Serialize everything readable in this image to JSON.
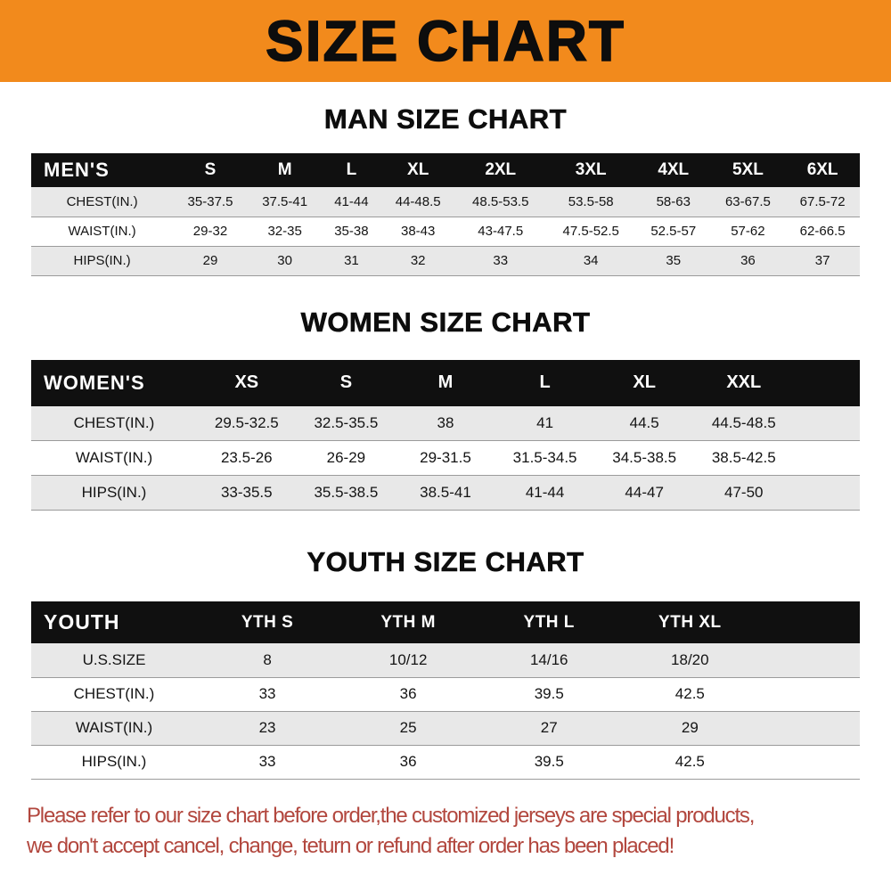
{
  "theme": {
    "banner_bg": "#f28a1c",
    "table_header_bg": "#101010",
    "row_stripe": "#e8e8e8",
    "footer_text": "#b2473e"
  },
  "banner": {
    "title": "SIZE CHART"
  },
  "sections": [
    {
      "heading": "MAN SIZE CHART",
      "table": {
        "label": "MEN'S",
        "columns": [
          "S",
          "M",
          "L",
          "XL",
          "2XL",
          "3XL",
          "4XL",
          "5XL",
          "6XL"
        ],
        "rows": [
          {
            "label": "CHEST(IN.)",
            "values": [
              "35-37.5",
              "37.5-41",
              "41-44",
              "44-48.5",
              "48.5-53.5",
              "53.5-58",
              "58-63",
              "63-67.5",
              "67.5-72"
            ]
          },
          {
            "label": "WAIST(IN.)",
            "values": [
              "29-32",
              "32-35",
              "35-38",
              "38-43",
              "43-47.5",
              "47.5-52.5",
              "52.5-57",
              "57-62",
              "62-66.5"
            ]
          },
          {
            "label": "HIPS(IN.)",
            "values": [
              "29",
              "30",
              "31",
              "32",
              "33",
              "34",
              "35",
              "36",
              "37"
            ]
          }
        ]
      }
    },
    {
      "heading": "WOMEN SIZE CHART",
      "table": {
        "label": "WOMEN'S",
        "filler": true,
        "columns": [
          "XS",
          "S",
          "M",
          "L",
          "XL",
          "XXL"
        ],
        "rows": [
          {
            "label": "CHEST(IN.)",
            "values": [
              "29.5-32.5",
              "32.5-35.5",
              "38",
              "41",
              "44.5",
              "44.5-48.5"
            ]
          },
          {
            "label": "WAIST(IN.)",
            "values": [
              "23.5-26",
              "26-29",
              "29-31.5",
              "31.5-34.5",
              "34.5-38.5",
              "38.5-42.5"
            ]
          },
          {
            "label": "HIPS(IN.)",
            "values": [
              "33-35.5",
              "35.5-38.5",
              "38.5-41",
              "41-44",
              "44-47",
              "47-50"
            ]
          }
        ]
      }
    },
    {
      "heading": "YOUTH SIZE CHART",
      "table": {
        "label": "YOUTH",
        "filler": true,
        "columns": [
          "YTH S",
          "YTH M",
          "YTH L",
          "YTH XL"
        ],
        "rows": [
          {
            "label": "U.S.SIZE",
            "values": [
              "8",
              "10/12",
              "14/16",
              "18/20"
            ]
          },
          {
            "label": "CHEST(IN.)",
            "values": [
              "33",
              "36",
              "39.5",
              "42.5"
            ]
          },
          {
            "label": "WAIST(IN.)",
            "values": [
              "23",
              "25",
              "27",
              "29"
            ]
          },
          {
            "label": "HIPS(IN.)",
            "values": [
              "33",
              "36",
              "39.5",
              "42.5"
            ]
          }
        ]
      }
    }
  ],
  "footer": {
    "lines": [
      "Please refer to our size chart before order,the customized jerseys are special products,",
      "we don't accept cancel, change, teturn or refund after order has been placed!"
    ]
  }
}
